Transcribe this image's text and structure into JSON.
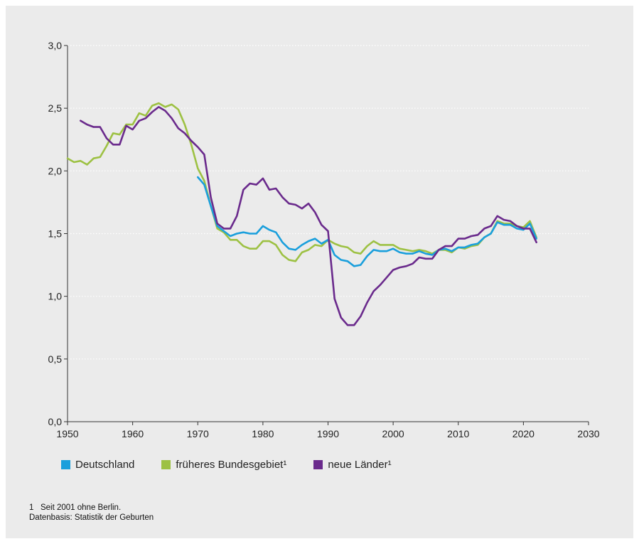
{
  "chart_data": {
    "type": "line",
    "xlim": [
      1950,
      2030
    ],
    "ylim": [
      0,
      3.0
    ],
    "x_ticks": [
      "1950",
      "1960",
      "1970",
      "1980",
      "1990",
      "2000",
      "2010",
      "2020",
      "2030"
    ],
    "y_ticks": [
      "0,0",
      "0,5",
      "1,0",
      "1,5",
      "2,0",
      "2,5",
      "3,0"
    ],
    "grid": "horizontal dotted",
    "legend_position": "bottom",
    "series": [
      {
        "name": "Deutschland",
        "color": "#1a9fdc",
        "points": [
          [
            1970,
            1.95
          ],
          [
            1971,
            1.89
          ],
          [
            1972,
            1.72
          ],
          [
            1973,
            1.56
          ],
          [
            1974,
            1.52
          ],
          [
            1975,
            1.48
          ],
          [
            1976,
            1.5
          ],
          [
            1977,
            1.51
          ],
          [
            1978,
            1.5
          ],
          [
            1979,
            1.5
          ],
          [
            1980,
            1.56
          ],
          [
            1981,
            1.53
          ],
          [
            1982,
            1.51
          ],
          [
            1983,
            1.43
          ],
          [
            1984,
            1.38
          ],
          [
            1985,
            1.37
          ],
          [
            1986,
            1.41
          ],
          [
            1987,
            1.44
          ],
          [
            1988,
            1.46
          ],
          [
            1989,
            1.42
          ],
          [
            1990,
            1.45
          ],
          [
            1991,
            1.33
          ],
          [
            1992,
            1.29
          ],
          [
            1993,
            1.28
          ],
          [
            1994,
            1.24
          ],
          [
            1995,
            1.25
          ],
          [
            1996,
            1.32
          ],
          [
            1997,
            1.37
          ],
          [
            1998,
            1.36
          ],
          [
            1999,
            1.36
          ],
          [
            2000,
            1.38
          ],
          [
            2001,
            1.35
          ],
          [
            2002,
            1.34
          ],
          [
            2003,
            1.34
          ],
          [
            2004,
            1.36
          ],
          [
            2005,
            1.34
          ],
          [
            2006,
            1.33
          ],
          [
            2007,
            1.37
          ],
          [
            2008,
            1.38
          ],
          [
            2009,
            1.36
          ],
          [
            2010,
            1.39
          ],
          [
            2011,
            1.39
          ],
          [
            2012,
            1.41
          ],
          [
            2013,
            1.42
          ],
          [
            2014,
            1.47
          ],
          [
            2015,
            1.5
          ],
          [
            2016,
            1.59
          ],
          [
            2017,
            1.57
          ],
          [
            2018,
            1.57
          ],
          [
            2019,
            1.54
          ],
          [
            2020,
            1.53
          ],
          [
            2021,
            1.58
          ],
          [
            2022,
            1.46
          ]
        ]
      },
      {
        "name": "früheres Bundesgebiet¹",
        "color": "#9dc143",
        "points": [
          [
            1950,
            2.1
          ],
          [
            1951,
            2.07
          ],
          [
            1952,
            2.08
          ],
          [
            1953,
            2.05
          ],
          [
            1954,
            2.1
          ],
          [
            1955,
            2.11
          ],
          [
            1956,
            2.2
          ],
          [
            1957,
            2.3
          ],
          [
            1958,
            2.29
          ],
          [
            1959,
            2.37
          ],
          [
            1960,
            2.37
          ],
          [
            1961,
            2.46
          ],
          [
            1962,
            2.44
          ],
          [
            1963,
            2.52
          ],
          [
            1964,
            2.54
          ],
          [
            1965,
            2.51
          ],
          [
            1966,
            2.53
          ],
          [
            1967,
            2.49
          ],
          [
            1968,
            2.37
          ],
          [
            1969,
            2.21
          ],
          [
            1970,
            2.02
          ],
          [
            1971,
            1.92
          ],
          [
            1972,
            1.72
          ],
          [
            1973,
            1.54
          ],
          [
            1974,
            1.51
          ],
          [
            1975,
            1.45
          ],
          [
            1976,
            1.45
          ],
          [
            1977,
            1.4
          ],
          [
            1978,
            1.38
          ],
          [
            1979,
            1.38
          ],
          [
            1980,
            1.44
          ],
          [
            1981,
            1.44
          ],
          [
            1982,
            1.41
          ],
          [
            1983,
            1.33
          ],
          [
            1984,
            1.29
          ],
          [
            1985,
            1.28
          ],
          [
            1986,
            1.35
          ],
          [
            1987,
            1.37
          ],
          [
            1988,
            1.41
          ],
          [
            1989,
            1.4
          ],
          [
            1990,
            1.45
          ],
          [
            1991,
            1.42
          ],
          [
            1992,
            1.4
          ],
          [
            1993,
            1.39
          ],
          [
            1994,
            1.35
          ],
          [
            1995,
            1.34
          ],
          [
            1996,
            1.4
          ],
          [
            1997,
            1.44
          ],
          [
            1998,
            1.41
          ],
          [
            1999,
            1.41
          ],
          [
            2000,
            1.41
          ],
          [
            2001,
            1.38
          ],
          [
            2002,
            1.37
          ],
          [
            2003,
            1.36
          ],
          [
            2004,
            1.37
          ],
          [
            2005,
            1.36
          ],
          [
            2006,
            1.34
          ],
          [
            2007,
            1.37
          ],
          [
            2008,
            1.37
          ],
          [
            2009,
            1.35
          ],
          [
            2010,
            1.39
          ],
          [
            2011,
            1.38
          ],
          [
            2012,
            1.4
          ],
          [
            2013,
            1.41
          ],
          [
            2014,
            1.47
          ],
          [
            2015,
            1.5
          ],
          [
            2016,
            1.6
          ],
          [
            2017,
            1.58
          ],
          [
            2018,
            1.58
          ],
          [
            2019,
            1.56
          ],
          [
            2020,
            1.55
          ],
          [
            2021,
            1.6
          ],
          [
            2022,
            1.47
          ]
        ]
      },
      {
        "name": "neue Länder¹",
        "color": "#6a2a8c",
        "points": [
          [
            1952,
            2.4
          ],
          [
            1953,
            2.37
          ],
          [
            1954,
            2.35
          ],
          [
            1955,
            2.35
          ],
          [
            1956,
            2.26
          ],
          [
            1957,
            2.21
          ],
          [
            1958,
            2.21
          ],
          [
            1959,
            2.36
          ],
          [
            1960,
            2.33
          ],
          [
            1961,
            2.4
          ],
          [
            1962,
            2.42
          ],
          [
            1963,
            2.47
          ],
          [
            1964,
            2.51
          ],
          [
            1965,
            2.48
          ],
          [
            1966,
            2.42
          ],
          [
            1967,
            2.34
          ],
          [
            1968,
            2.3
          ],
          [
            1969,
            2.24
          ],
          [
            1970,
            2.19
          ],
          [
            1971,
            2.13
          ],
          [
            1972,
            1.79
          ],
          [
            1973,
            1.58
          ],
          [
            1974,
            1.54
          ],
          [
            1975,
            1.54
          ],
          [
            1976,
            1.64
          ],
          [
            1977,
            1.85
          ],
          [
            1978,
            1.9
          ],
          [
            1979,
            1.89
          ],
          [
            1980,
            1.94
          ],
          [
            1981,
            1.85
          ],
          [
            1982,
            1.86
          ],
          [
            1983,
            1.79
          ],
          [
            1984,
            1.74
          ],
          [
            1985,
            1.73
          ],
          [
            1986,
            1.7
          ],
          [
            1987,
            1.74
          ],
          [
            1988,
            1.67
          ],
          [
            1989,
            1.57
          ],
          [
            1990,
            1.52
          ],
          [
            1991,
            0.98
          ],
          [
            1992,
            0.83
          ],
          [
            1993,
            0.77
          ],
          [
            1994,
            0.77
          ],
          [
            1995,
            0.84
          ],
          [
            1996,
            0.95
          ],
          [
            1997,
            1.04
          ],
          [
            1998,
            1.09
          ],
          [
            1999,
            1.15
          ],
          [
            2000,
            1.21
          ],
          [
            2001,
            1.23
          ],
          [
            2002,
            1.24
          ],
          [
            2003,
            1.26
          ],
          [
            2004,
            1.31
          ],
          [
            2005,
            1.3
          ],
          [
            2006,
            1.3
          ],
          [
            2007,
            1.37
          ],
          [
            2008,
            1.4
          ],
          [
            2009,
            1.4
          ],
          [
            2010,
            1.46
          ],
          [
            2011,
            1.46
          ],
          [
            2012,
            1.48
          ],
          [
            2013,
            1.49
          ],
          [
            2014,
            1.54
          ],
          [
            2015,
            1.56
          ],
          [
            2016,
            1.64
          ],
          [
            2017,
            1.61
          ],
          [
            2018,
            1.6
          ],
          [
            2019,
            1.56
          ],
          [
            2020,
            1.54
          ],
          [
            2021,
            1.54
          ],
          [
            2022,
            1.43
          ]
        ]
      }
    ]
  },
  "footnotes": {
    "note1": "1   Seit 2001 ohne Berlin.",
    "source": "Datenbasis: Statistik der Geburten"
  }
}
